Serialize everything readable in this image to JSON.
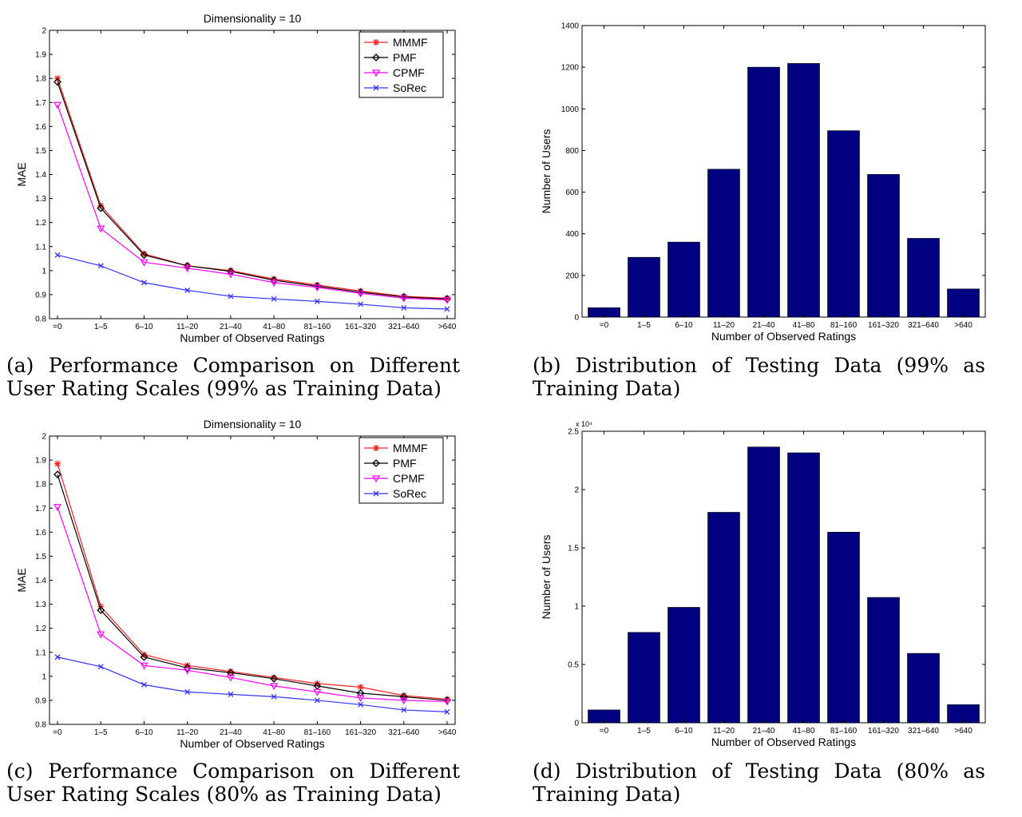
{
  "chart_data": [
    {
      "type": "line",
      "title": "Dimensionality = 10",
      "xlabel": "Number of Observed Ratings",
      "ylabel": "MAE",
      "categories": [
        "=0",
        "1–5",
        "6–10",
        "11–20",
        "21–40",
        "41–80",
        "81–160",
        "161–320",
        "321–640",
        ">640"
      ],
      "ylim": [
        0.8,
        2
      ],
      "yticks": [
        "0.8",
        "0.9",
        "1",
        "1.1",
        "1.2",
        "1.3",
        "1.4",
        "1.5",
        "1.6",
        "1.7",
        "1.8",
        "1.9",
        "2"
      ],
      "legend_position": "top-right",
      "grid": false,
      "series": [
        {
          "name": "MMMF",
          "marker": "star",
          "color": "#ff2020",
          "values": [
            1.8,
            1.27,
            1.07,
            1.02,
            1.0,
            0.965,
            0.94,
            0.915,
            0.893,
            0.885
          ]
        },
        {
          "name": "PMF",
          "marker": "diamond",
          "color": "#000000",
          "values": [
            1.785,
            1.26,
            1.065,
            1.02,
            0.997,
            0.96,
            0.935,
            0.91,
            0.89,
            0.882
          ]
        },
        {
          "name": "CPMF",
          "marker": "triangle-down",
          "color": "#ff00ff",
          "values": [
            1.69,
            1.175,
            1.035,
            1.01,
            0.985,
            0.95,
            0.93,
            0.905,
            0.885,
            0.878
          ]
        },
        {
          "name": "SoRec",
          "marker": "x",
          "color": "#3333ff",
          "values": [
            1.065,
            1.02,
            0.95,
            0.918,
            0.893,
            0.882,
            0.872,
            0.86,
            0.845,
            0.84
          ]
        }
      ]
    },
    {
      "type": "bar",
      "title": "",
      "xlabel": "Number of Observed Ratings",
      "ylabel": "Number of Users",
      "categories": [
        "=0",
        "1–5",
        "6–10",
        "11–20",
        "21–40",
        "41–80",
        "81–160",
        "161–320",
        "321–640",
        ">640"
      ],
      "values": [
        45,
        287,
        360,
        710,
        1200,
        1218,
        895,
        685,
        378,
        135
      ],
      "ylim": [
        0,
        1400
      ],
      "yticks": [
        "0",
        "200",
        "400",
        "600",
        "800",
        "1000",
        "1200",
        "1400"
      ],
      "color": "#000080",
      "grid": false
    },
    {
      "type": "line",
      "title": "Dimensionality = 10",
      "xlabel": "Number of Observed Ratings",
      "ylabel": "MAE",
      "categories": [
        "=0",
        "1–5",
        "6–10",
        "11–20",
        "21–40",
        "41–80",
        "81–160",
        "161–320",
        "321–640",
        ">640"
      ],
      "ylim": [
        0.8,
        2
      ],
      "yticks": [
        "0.8",
        "0.9",
        "1",
        "1.1",
        "1.2",
        "1.3",
        "1.4",
        "1.5",
        "1.6",
        "1.7",
        "1.8",
        "1.9",
        "2"
      ],
      "legend_position": "top-right",
      "grid": false,
      "series": [
        {
          "name": "MMMF",
          "marker": "star",
          "color": "#ff2020",
          "values": [
            1.885,
            1.29,
            1.09,
            1.045,
            1.02,
            0.995,
            0.97,
            0.955,
            0.92,
            0.905
          ]
        },
        {
          "name": "PMF",
          "marker": "diamond",
          "color": "#000000",
          "values": [
            1.84,
            1.275,
            1.08,
            1.035,
            1.015,
            0.99,
            0.96,
            0.93,
            0.915,
            0.9
          ]
        },
        {
          "name": "CPMF",
          "marker": "triangle-down",
          "color": "#ff00ff",
          "values": [
            1.705,
            1.175,
            1.045,
            1.025,
            0.995,
            0.96,
            0.935,
            0.91,
            0.9,
            0.895
          ]
        },
        {
          "name": "SoRec",
          "marker": "x",
          "color": "#3333ff",
          "values": [
            1.08,
            1.04,
            0.965,
            0.935,
            0.925,
            0.915,
            0.9,
            0.882,
            0.86,
            0.852
          ]
        }
      ]
    },
    {
      "type": "bar",
      "title": "",
      "xlabel": "Number of Observed Ratings",
      "ylabel": "Number of Users",
      "categories": [
        "=0",
        "1–5",
        "6–10",
        "11–20",
        "21–40",
        "41–80",
        "81–160",
        "161–320",
        "321–640",
        ">640"
      ],
      "values": [
        0.11,
        0.775,
        0.99,
        1.805,
        2.365,
        2.315,
        1.635,
        1.075,
        0.595,
        0.155
      ],
      "ylim": [
        0,
        2.5
      ],
      "yticks": [
        "0",
        "0.5",
        "1",
        "1.5",
        "2",
        "2.5"
      ],
      "exponent": "x 10⁴",
      "color": "#000080",
      "grid": false
    }
  ],
  "captions": [
    {
      "line1": "(a) Performance Comparison on Different",
      "line2": "User Rating Scales (99% as Training Data)"
    },
    {
      "line1": "(b) Distribution of Testing Data (99% as",
      "line2": "Training Data)"
    },
    {
      "line1": "(c) Performance Comparison on Different",
      "line2": "User Rating Scales (80% as Training Data)"
    },
    {
      "line1": "(d) Distribution of Testing Data (80% as",
      "line2": "Training Data)"
    }
  ]
}
